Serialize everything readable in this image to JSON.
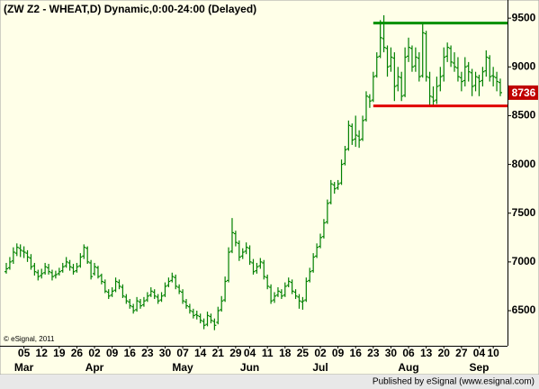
{
  "chart_data": {
    "type": "ohlc",
    "title": "(ZW Z2 - WHEAT,D) Dynamic,0:00-24:00 (Delayed)",
    "credit": "© eSignal, 2011",
    "footer": "Published by eSignal (www.esignal.com)",
    "color": "#008000",
    "ylim": [
      6140,
      9640
    ],
    "yticks": [
      6500,
      7000,
      7500,
      8000,
      8500,
      9000,
      9500
    ],
    "hlines": [
      {
        "value": 9450,
        "color": "#009000"
      },
      {
        "value": 8600,
        "color": "#e00000"
      }
    ],
    "categories": [
      null,
      null,
      null,
      null,
      null,
      "05",
      null,
      null,
      null,
      null,
      "12",
      null,
      null,
      null,
      null,
      "19",
      null,
      null,
      null,
      null,
      "26",
      null,
      null,
      null,
      null,
      "02",
      null,
      null,
      null,
      null,
      "09",
      null,
      null,
      null,
      null,
      "16",
      null,
      null,
      null,
      null,
      "23",
      null,
      null,
      null,
      null,
      "30",
      null,
      null,
      null,
      null,
      "07",
      null,
      null,
      null,
      null,
      "14",
      null,
      null,
      null,
      null,
      "21",
      null,
      null,
      null,
      null,
      "29",
      null,
      null,
      null,
      "04",
      null,
      null,
      null,
      null,
      "11",
      null,
      null,
      null,
      null,
      "18",
      null,
      null,
      null,
      null,
      "25",
      null,
      null,
      null,
      null,
      "02",
      null,
      null,
      null,
      null,
      "09",
      null,
      null,
      null,
      null,
      "16",
      null,
      null,
      null,
      null,
      "23",
      null,
      null,
      null,
      null,
      "30",
      null,
      null,
      null,
      null,
      "06",
      null,
      null,
      null,
      null,
      "13",
      null,
      null,
      null,
      null,
      "20",
      null,
      null,
      null,
      null,
      "27",
      null,
      null,
      null,
      null,
      "04",
      null,
      null,
      null,
      "10",
      null,
      null
    ],
    "months": [
      null,
      null,
      null,
      null,
      null,
      "Mar",
      null,
      null,
      null,
      null,
      null,
      null,
      null,
      null,
      null,
      null,
      null,
      null,
      null,
      null,
      null,
      null,
      null,
      null,
      null,
      "Apr",
      null,
      null,
      null,
      null,
      null,
      null,
      null,
      null,
      null,
      null,
      null,
      null,
      null,
      null,
      null,
      null,
      null,
      null,
      null,
      null,
      null,
      null,
      null,
      null,
      "May",
      null,
      null,
      null,
      null,
      null,
      null,
      null,
      null,
      null,
      null,
      null,
      null,
      null,
      null,
      null,
      null,
      null,
      null,
      "Jun",
      null,
      null,
      null,
      null,
      null,
      null,
      null,
      null,
      null,
      null,
      null,
      null,
      null,
      null,
      null,
      null,
      null,
      null,
      null,
      "Jul",
      null,
      null,
      null,
      null,
      null,
      null,
      null,
      null,
      null,
      null,
      null,
      null,
      null,
      null,
      null,
      null,
      null,
      null,
      null,
      null,
      null,
      null,
      null,
      null,
      "Aug",
      null,
      null,
      null,
      null,
      null,
      null,
      null,
      null,
      null,
      null,
      null,
      null,
      null,
      null,
      null,
      null,
      null,
      null,
      null,
      "Sep",
      null,
      null,
      null,
      null,
      null,
      null
    ],
    "ohlc": [
      [
        6900,
        6990,
        6880,
        6930
      ],
      [
        6940,
        7050,
        6920,
        7000
      ],
      [
        7010,
        7150,
        6980,
        7100
      ],
      [
        7090,
        7190,
        7060,
        7150
      ],
      [
        7140,
        7180,
        7050,
        7120
      ],
      [
        7110,
        7160,
        7040,
        7100
      ],
      [
        7090,
        7120,
        7000,
        7050
      ],
      [
        7040,
        7080,
        6920,
        6950
      ],
      [
        6960,
        6990,
        6860,
        6900
      ],
      [
        6890,
        6920,
        6810,
        6850
      ],
      [
        6860,
        6930,
        6830,
        6880
      ],
      [
        6890,
        6990,
        6870,
        6950
      ],
      [
        6940,
        6980,
        6870,
        6900
      ],
      [
        6890,
        6920,
        6810,
        6850
      ],
      [
        6860,
        6910,
        6830,
        6870
      ],
      [
        6880,
        6940,
        6860,
        6900
      ],
      [
        6910,
        6990,
        6890,
        6950
      ],
      [
        6960,
        7050,
        6940,
        7000
      ],
      [
        6990,
        7020,
        6910,
        6950
      ],
      [
        6940,
        6980,
        6870,
        6900
      ],
      [
        6910,
        6990,
        6890,
        6950
      ],
      [
        6960,
        7090,
        6940,
        7050
      ],
      [
        7060,
        7180,
        7030,
        7150
      ],
      [
        7140,
        7160,
        6980,
        7000
      ],
      [
        6990,
        7020,
        6820,
        6850
      ],
      [
        6880,
        6990,
        6860,
        6950
      ],
      [
        6940,
        6960,
        6830,
        6850
      ],
      [
        6860,
        6880,
        6770,
        6800
      ],
      [
        6790,
        6820,
        6680,
        6700
      ],
      [
        6690,
        6720,
        6620,
        6650
      ],
      [
        6660,
        6740,
        6640,
        6700
      ],
      [
        6710,
        6840,
        6690,
        6800
      ],
      [
        6790,
        6820,
        6720,
        6750
      ],
      [
        6740,
        6770,
        6630,
        6650
      ],
      [
        6640,
        6670,
        6570,
        6600
      ],
      [
        6590,
        6620,
        6520,
        6550
      ],
      [
        6540,
        6570,
        6470,
        6500
      ],
      [
        6510,
        6640,
        6490,
        6600
      ],
      [
        6590,
        6620,
        6520,
        6550
      ],
      [
        6560,
        6640,
        6540,
        6600
      ],
      [
        6610,
        6690,
        6590,
        6650
      ],
      [
        6660,
        6740,
        6640,
        6700
      ],
      [
        6690,
        6720,
        6620,
        6650
      ],
      [
        6640,
        6670,
        6570,
        6600
      ],
      [
        6610,
        6690,
        6590,
        6650
      ],
      [
        6660,
        6790,
        6640,
        6750
      ],
      [
        6760,
        6840,
        6740,
        6800
      ],
      [
        6810,
        6890,
        6790,
        6850
      ],
      [
        6840,
        6870,
        6720,
        6750
      ],
      [
        6740,
        6770,
        6670,
        6700
      ],
      [
        6690,
        6720,
        6570,
        6600
      ],
      [
        6590,
        6620,
        6520,
        6550
      ],
      [
        6540,
        6570,
        6470,
        6500
      ],
      [
        6490,
        6520,
        6420,
        6450
      ],
      [
        6460,
        6500,
        6410,
        6450
      ],
      [
        6440,
        6470,
        6370,
        6400
      ],
      [
        6390,
        6420,
        6310,
        6350
      ],
      [
        6360,
        6490,
        6340,
        6450
      ],
      [
        6440,
        6470,
        6370,
        6400
      ],
      [
        6390,
        6420,
        6300,
        6350
      ],
      [
        6380,
        6540,
        6360,
        6500
      ],
      [
        6510,
        6650,
        6490,
        6600
      ],
      [
        6610,
        6850,
        6590,
        6800
      ],
      [
        6810,
        7150,
        6790,
        7100
      ],
      [
        7110,
        7450,
        7090,
        7300
      ],
      [
        7290,
        7320,
        7160,
        7200
      ],
      [
        7190,
        7220,
        7010,
        7050
      ],
      [
        7060,
        7140,
        7030,
        7100
      ],
      [
        7110,
        7200,
        7080,
        7150
      ],
      [
        7140,
        7170,
        6970,
        7000
      ],
      [
        6990,
        7030,
        6870,
        6900
      ],
      [
        6910,
        6990,
        6880,
        6950
      ],
      [
        6960,
        7040,
        6930,
        7000
      ],
      [
        6990,
        7020,
        6820,
        6850
      ],
      [
        6840,
        6870,
        6720,
        6750
      ],
      [
        6740,
        6770,
        6570,
        6600
      ],
      [
        6610,
        6690,
        6580,
        6650
      ],
      [
        6660,
        6740,
        6640,
        6700
      ],
      [
        6690,
        6720,
        6620,
        6650
      ],
      [
        6660,
        6790,
        6640,
        6750
      ],
      [
        6760,
        6840,
        6740,
        6800
      ],
      [
        6790,
        6820,
        6670,
        6700
      ],
      [
        6690,
        6720,
        6620,
        6650
      ],
      [
        6640,
        6670,
        6520,
        6600
      ],
      [
        6590,
        6640,
        6510,
        6600
      ],
      [
        6610,
        6840,
        6590,
        6800
      ],
      [
        6810,
        6940,
        6790,
        6900
      ],
      [
        6910,
        7090,
        6890,
        7050
      ],
      [
        7060,
        7190,
        7040,
        7150
      ],
      [
        7160,
        7290,
        7140,
        7250
      ],
      [
        7260,
        7440,
        7240,
        7400
      ],
      [
        7410,
        7640,
        7390,
        7600
      ],
      [
        7610,
        7840,
        7590,
        7800
      ],
      [
        7790,
        7820,
        7700,
        7750
      ],
      [
        7760,
        7840,
        7740,
        7800
      ],
      [
        7810,
        8050,
        7790,
        8000
      ],
      [
        8010,
        8190,
        7990,
        8150
      ],
      [
        8160,
        8450,
        8140,
        8400
      ],
      [
        8390,
        8420,
        8200,
        8250
      ],
      [
        8260,
        8500,
        8180,
        8300
      ],
      [
        8290,
        8350,
        8170,
        8250
      ],
      [
        8260,
        8500,
        8240,
        8450
      ],
      [
        8460,
        8750,
        8440,
        8700
      ],
      [
        8690,
        8720,
        8580,
        8650
      ],
      [
        8660,
        8950,
        8640,
        8900
      ],
      [
        8910,
        9150,
        8890,
        9100
      ],
      [
        9110,
        9480,
        9090,
        9300
      ],
      [
        9290,
        9530,
        9150,
        9200
      ],
      [
        9190,
        9220,
        8900,
        9000
      ],
      [
        9010,
        9200,
        8950,
        9100
      ],
      [
        9090,
        9150,
        8650,
        8800
      ],
      [
        8810,
        9000,
        8750,
        8900
      ],
      [
        8890,
        8950,
        8650,
        8700
      ],
      [
        8710,
        9200,
        8690,
        9100
      ],
      [
        9110,
        9300,
        9050,
        9200
      ],
      [
        9190,
        9220,
        8950,
        9000
      ],
      [
        9010,
        9200,
        8950,
        9100
      ],
      [
        9090,
        9150,
        8850,
        8900
      ],
      [
        8910,
        9450,
        8890,
        9350
      ],
      [
        9340,
        9370,
        8850,
        8900
      ],
      [
        8890,
        8950,
        8600,
        8700
      ],
      [
        8690,
        8800,
        8600,
        8650
      ],
      [
        8660,
        8900,
        8620,
        8800
      ],
      [
        8810,
        9000,
        8750,
        8900
      ],
      [
        8910,
        9200,
        8850,
        9100
      ],
      [
        9110,
        9250,
        9050,
        9200
      ],
      [
        9190,
        9220,
        9000,
        9050
      ],
      [
        9040,
        9150,
        8950,
        9000
      ],
      [
        8990,
        9100,
        8850,
        8900
      ],
      [
        8890,
        8950,
        8750,
        8850
      ],
      [
        8860,
        9100,
        8800,
        9000
      ],
      [
        9010,
        9050,
        8850,
        8950
      ],
      [
        8940,
        8980,
        8700,
        8800
      ],
      [
        8810,
        8950,
        8750,
        8900
      ],
      [
        8890,
        8920,
        8700,
        8850
      ],
      [
        8860,
        9000,
        8800,
        8950
      ],
      [
        8960,
        9170,
        8900,
        9100
      ],
      [
        9090,
        9120,
        8850,
        8900
      ],
      [
        8910,
        9000,
        8800,
        8900
      ],
      [
        8890,
        8950,
        8750,
        8850
      ],
      [
        8840,
        8880,
        8700,
        8736
      ]
    ]
  }
}
